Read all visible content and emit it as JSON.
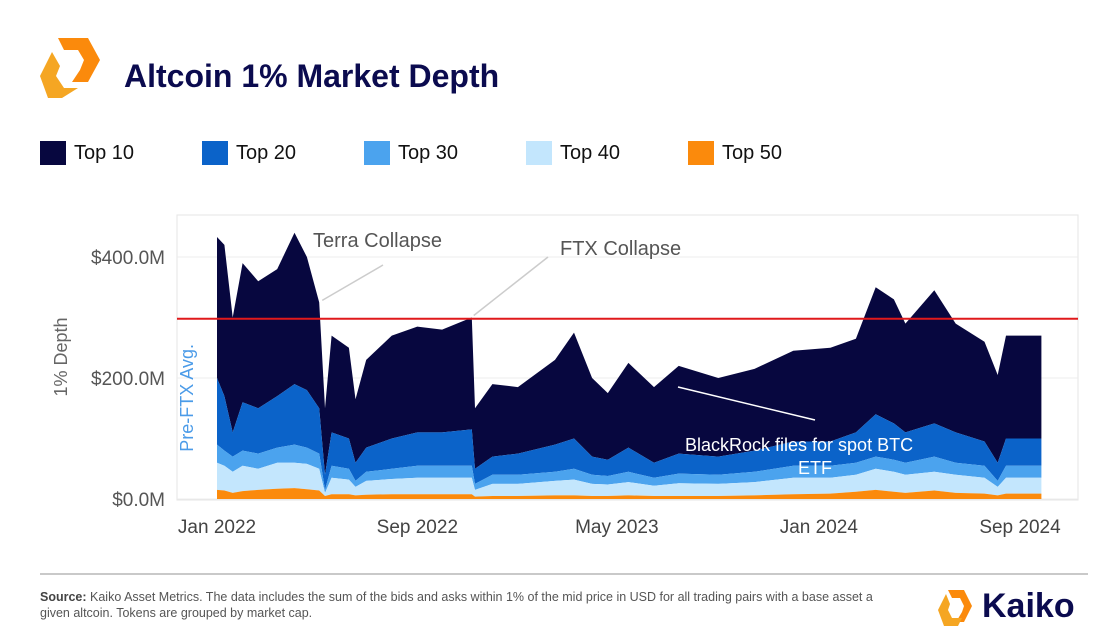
{
  "header": {
    "title": "Altcoin 1% Market Depth"
  },
  "footer": {
    "source_label": "Source:",
    "source_text": " Kaiko Asset Metrics. The data includes the sum of the bids and asks within 1% of the mid price in USD for all trading pairs with a base asset  a given altcoin. Tokens are grouped by market cap.",
    "brand": "Kaiko"
  },
  "chart_data": {
    "type": "area",
    "stacked": true,
    "title": "Altcoin 1% Market Depth",
    "xlabel": "",
    "ylabel": "1% Depth",
    "ylim": [
      0,
      470
    ],
    "yunit": "USD millions",
    "yticks": [
      {
        "v": 0,
        "label": "$0.0M"
      },
      {
        "v": 200,
        "label": "$200.0M"
      },
      {
        "v": 400,
        "label": "$400.0M"
      }
    ],
    "xticks": [
      {
        "d": "2022-01-01",
        "label": "Jan 2022"
      },
      {
        "d": "2022-09-01",
        "label": "Sep 2022"
      },
      {
        "d": "2023-05-01",
        "label": "May 2023"
      },
      {
        "d": "2024-01-01",
        "label": "Jan 2024"
      },
      {
        "d": "2024-09-01",
        "label": "Sep 2024"
      }
    ],
    "xlim": [
      "2021-10-15",
      "2024-10-31"
    ],
    "grid": true,
    "legend_position": "top",
    "reference_line": {
      "value": 298,
      "label": "Pre-FTX Avg.",
      "color": "#e0191b"
    },
    "annotations": [
      {
        "text": "Terra Collapse",
        "date": "2022-05-05",
        "value": 325
      },
      {
        "text": "FTX Collapse",
        "date": "2022-11-06",
        "value": 300
      },
      {
        "text": "BlackRock files for spot BTC",
        "text2": "ETF",
        "date": "2023-06-15",
        "value": 185
      }
    ],
    "x": [
      "2022-01-01",
      "2022-01-10",
      "2022-01-20",
      "2022-02-01",
      "2022-02-20",
      "2022-03-15",
      "2022-04-05",
      "2022-04-20",
      "2022-05-05",
      "2022-05-12",
      "2022-05-20",
      "2022-06-10",
      "2022-06-18",
      "2022-07-01",
      "2022-08-01",
      "2022-09-01",
      "2022-10-01",
      "2022-11-06",
      "2022-11-10",
      "2022-12-01",
      "2023-01-01",
      "2023-02-15",
      "2023-03-10",
      "2023-04-01",
      "2023-04-20",
      "2023-05-15",
      "2023-06-15",
      "2023-07-15",
      "2023-09-01",
      "2023-10-15",
      "2023-12-01",
      "2024-01-15",
      "2024-02-15",
      "2024-03-10",
      "2024-04-01",
      "2024-04-15",
      "2024-05-20",
      "2024-06-15",
      "2024-07-20",
      "2024-08-05",
      "2024-08-15",
      "2024-09-27"
    ],
    "series": [
      {
        "name": "Top 50",
        "color": "#fb8a0c",
        "values": [
          15,
          14,
          10,
          13,
          15,
          17,
          18,
          16,
          14,
          5,
          8,
          8,
          6,
          7,
          8,
          8,
          8,
          8,
          4,
          5,
          5,
          6,
          6,
          5,
          5,
          6,
          5,
          5,
          5,
          6,
          8,
          9,
          12,
          15,
          12,
          10,
          14,
          10,
          9,
          6,
          9,
          9
        ]
      },
      {
        "name": "Top 40",
        "color": "#c3e6fd",
        "values": [
          45,
          41,
          35,
          42,
          35,
          43,
          42,
          42,
          36,
          5,
          27,
          24,
          14,
          23,
          25,
          27,
          27,
          27,
          11,
          20,
          20,
          24,
          26,
          20,
          19,
          22,
          17,
          21,
          20,
          22,
          27,
          26,
          28,
          35,
          33,
          30,
          31,
          30,
          26,
          14,
          26,
          26
        ]
      },
      {
        "name": "Top 30",
        "color": "#4ba3ee",
        "values": [
          30,
          25,
          25,
          25,
          25,
          25,
          30,
          27,
          25,
          5,
          20,
          18,
          10,
          15,
          17,
          20,
          20,
          20,
          10,
          15,
          15,
          15,
          18,
          15,
          14,
          17,
          13,
          16,
          15,
          17,
          20,
          20,
          20,
          20,
          20,
          20,
          25,
          20,
          20,
          10,
          20,
          20
        ]
      },
      {
        "name": "Top 20",
        "color": "#0b63c9",
        "values": [
          110,
          90,
          40,
          80,
          75,
          85,
          100,
          95,
          75,
          25,
          55,
          50,
          30,
          40,
          50,
          55,
          55,
          60,
          25,
          30,
          35,
          45,
          50,
          30,
          27,
          40,
          25,
          33,
          30,
          35,
          40,
          40,
          50,
          70,
          60,
          50,
          55,
          50,
          40,
          30,
          45,
          45
        ]
      },
      {
        "name": "Top 10",
        "color": "#07073f",
        "values": [
          233,
          250,
          190,
          230,
          210,
          210,
          250,
          220,
          175,
          110,
          160,
          150,
          105,
          145,
          170,
          175,
          170,
          185,
          100,
          120,
          110,
          140,
          175,
          130,
          110,
          140,
          125,
          145,
          130,
          135,
          150,
          155,
          155,
          210,
          205,
          180,
          220,
          180,
          165,
          145,
          170,
          170
        ]
      }
    ],
    "legend": [
      "Top 10",
      "Top 20",
      "Top 30",
      "Top 40",
      "Top 50"
    ]
  }
}
